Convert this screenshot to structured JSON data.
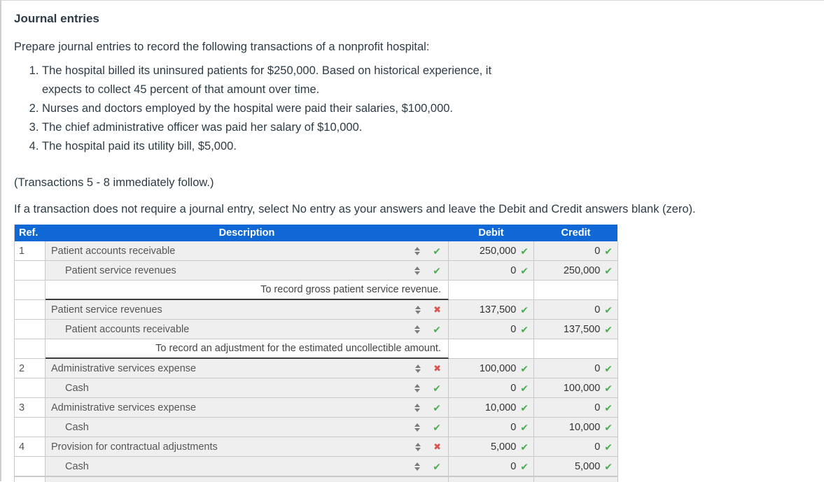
{
  "page": {
    "title": "Journal entries",
    "intro": "Prepare journal entries to record the following transactions of a nonprofit hospital:",
    "transactions": [
      "The hospital billed its uninsured patients for $250,000. Based on historical experience, it expects to collect 45 percent of that amount over time.",
      "Nurses and doctors employed by the hospital were paid their salaries, $100,000.",
      "The chief administrative officer was paid her salary of $10,000.",
      "The hospital paid its utility bill, $5,000."
    ],
    "note_follow": "(Transactions 5 - 8 immediately follow.)",
    "note_instruction": "If a transaction does not require a journal entry, select No entry as your answers and leave the Debit and Credit answers blank (zero)."
  },
  "table": {
    "headers": {
      "ref": "Ref.",
      "description": "Description",
      "debit": "Debit",
      "credit": "Credit"
    },
    "colors": {
      "header_blue": "#1068d6",
      "cell_gray": "#efefef",
      "correct_green": "#4caf50",
      "incorrect_red": "#d9534f"
    },
    "rows": [
      {
        "type": "entry",
        "ref": "1",
        "description": "Patient accounts receivable",
        "indent": false,
        "status": "correct",
        "debit": "250,000",
        "credit": "0"
      },
      {
        "type": "entry",
        "ref": "",
        "description": "Patient service revenues",
        "indent": true,
        "status": "correct",
        "debit": "0",
        "credit": "250,000"
      },
      {
        "type": "memo",
        "description": "To record gross patient service revenue."
      },
      {
        "type": "entry",
        "ref": "",
        "description": "Patient service revenues",
        "indent": false,
        "status": "incorrect",
        "debit": "137,500",
        "credit": "0"
      },
      {
        "type": "entry",
        "ref": "",
        "description": "Patient accounts receivable",
        "indent": true,
        "status": "correct",
        "debit": "0",
        "credit": "137,500"
      },
      {
        "type": "memo",
        "description": "To record an adjustment for the estimated uncollectible amount."
      },
      {
        "type": "entry",
        "ref": "2",
        "description": "Administrative services expense",
        "indent": false,
        "status": "incorrect",
        "debit": "100,000",
        "credit": "0"
      },
      {
        "type": "entry",
        "ref": "",
        "description": "Cash",
        "indent": true,
        "status": "correct",
        "debit": "0",
        "credit": "100,000"
      },
      {
        "type": "entry",
        "ref": "3",
        "description": "Administrative services expense",
        "indent": false,
        "status": "correct",
        "debit": "10,000",
        "credit": "0"
      },
      {
        "type": "entry",
        "ref": "",
        "description": "Cash",
        "indent": true,
        "status": "correct",
        "debit": "0",
        "credit": "10,000"
      },
      {
        "type": "entry",
        "ref": "4",
        "description": "Provision for contractual adjustments",
        "indent": false,
        "status": "incorrect",
        "debit": "5,000",
        "credit": "0"
      },
      {
        "type": "entry",
        "ref": "",
        "description": "Cash",
        "indent": true,
        "status": "correct",
        "debit": "0",
        "credit": "5,000"
      }
    ]
  }
}
